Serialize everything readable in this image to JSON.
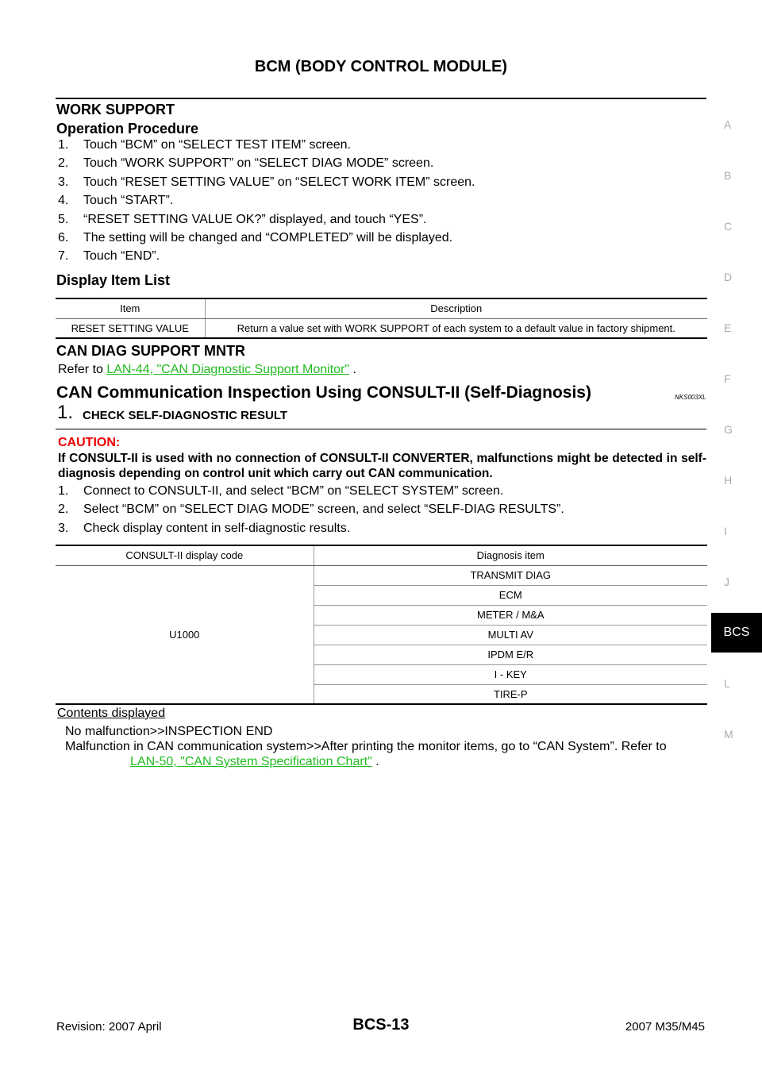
{
  "header": {
    "title": "BCM (BODY CONTROL MODULE)"
  },
  "work_support": {
    "heading": "WORK SUPPORT",
    "subheading": "Operation Procedure",
    "steps": [
      "Touch “BCM” on “SELECT TEST ITEM” screen.",
      "Touch “WORK SUPPORT” on “SELECT DIAG MODE” screen.",
      "Touch “RESET SETTING VALUE” on “SELECT WORK ITEM” screen.",
      "Touch “START”.",
      "“RESET SETTING VALUE OK?” displayed, and touch “YES”.",
      "The setting will be changed and “COMPLETED” will be displayed.",
      "Touch “END”."
    ]
  },
  "display_item_list": {
    "heading": "Display Item List",
    "columns": [
      "Item",
      "Description"
    ],
    "rows": [
      [
        "RESET SETTING VALUE",
        "Return a value set with WORK SUPPORT of each system to a default value in factory shipment."
      ]
    ]
  },
  "can_diag": {
    "heading": "CAN DIAG SUPPORT MNTR",
    "prefix": "Refer to ",
    "link": "LAN-44, \"CAN Diagnostic Support Monitor\"",
    "suffix": " ."
  },
  "can_inspection": {
    "heading": "CAN Communication Inspection Using CONSULT-II (Self-Diagnosis)",
    "code": "NKS003XL",
    "step_number": "1.",
    "step_title": "CHECK SELF-DIAGNOSTIC RESULT",
    "caution_label": "CAUTION:",
    "caution_text": "If CONSULT-II is used with no connection of CONSULT-II CONVERTER, malfunctions might be detected in self-diagnosis depending on control unit which carry out CAN communication.",
    "steps": [
      "Connect to CONSULT-II, and select “BCM” on “SELECT SYSTEM” screen.",
      "Select “BCM” on “SELECT DIAG MODE” screen, and select “SELF-DIAG RESULTS”.",
      "Check display content in self-diagnostic results."
    ],
    "table": {
      "columns": [
        "CONSULT-II display code",
        "Diagnosis item"
      ],
      "code": "U1000",
      "items": [
        "TRANSMIT DIAG",
        "ECM",
        "METER / M&A",
        "MULTI  AV",
        "IPDM E/R",
        "I - KEY",
        "TIRE-P"
      ]
    },
    "contents_label": "Contents displayed",
    "result1": "No malfunction>>INSPECTION END",
    "result2": "Malfunction in CAN communication system>>After printing the monitor items, go to “CAN System”. Refer to",
    "result2_link": "LAN-50, \"CAN System Specification Chart\"",
    "result2_suffix": " ."
  },
  "side_index": [
    "A",
    "B",
    "C",
    "D",
    "E",
    "F",
    "G",
    "H",
    "I",
    "J",
    "BCS",
    "L",
    "M"
  ],
  "footer": {
    "revision": "Revision: 2007 April",
    "page": "BCS-13",
    "model": "2007 M35/M45"
  }
}
